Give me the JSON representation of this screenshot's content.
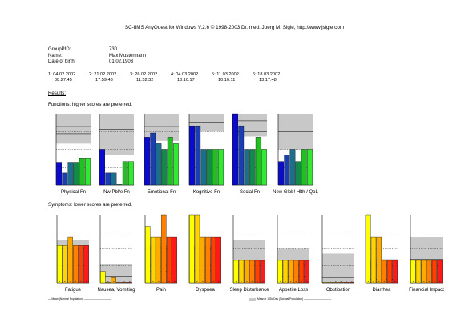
{
  "header": {
    "title": "SC-IIMS AnyQuest for Windows V.2.6 © 1998-2003 Dr. med. Joerg M. Sigle, http://www.jsigle.com"
  },
  "patient": {
    "group_pid_label": "GroupPID:",
    "group_pid_value": "730",
    "name_label": "Name:",
    "name_value": "Max Mustermann",
    "dob_label": "Date of birth:",
    "dob_value": "01.02.1903"
  },
  "sessions": [
    {
      "date": "1: 04.02.2002",
      "time": "08:27:45"
    },
    {
      "date": "2: 21.02.2002",
      "time": "17:59:43"
    },
    {
      "date": "3: 26.02.2002",
      "time": "11:52:32"
    },
    {
      "date": "4: 04.03.2002",
      "time": "10:10:17"
    },
    {
      "date": "5: 11.03.2002",
      "time": "10:10:11"
    },
    {
      "date": "6: 18.03.2002",
      "time": "13:17:48"
    }
  ],
  "sections": {
    "results": "Results:",
    "functions": "Functions: higher scores are preferred.",
    "symptoms": "Symptoms: lower scores are preferred."
  },
  "legend": {
    "left": "— Mean (Normal Population) ——————————",
    "right": "Mean ± 1 StdDev (Normal Population) ——————————"
  },
  "colors": {
    "reference_band": "#c8c8c8",
    "function_bar_palette": [
      "#0a0ad0",
      "#1a3fb5",
      "#1c6f8a",
      "#138a4a",
      "#22bf22",
      "#33e833"
    ],
    "symptom_bar_palette": [
      "#ffff00",
      "#ffd400",
      "#ffaa00",
      "#ff8000",
      "#ff4000",
      "#ff1a1a"
    ]
  },
  "chart_data": [
    {
      "type": "bar",
      "title": "Physical Fn",
      "group": "functions",
      "ylim": [
        0,
        100
      ],
      "categories": [
        "1",
        "2",
        "3",
        "4",
        "5",
        "6"
      ],
      "values": [
        32,
        17,
        32,
        32,
        38,
        38
      ],
      "bar_labels": false,
      "ref_band": [
        58,
        100
      ],
      "ref_mean": 82,
      "ref_line2": 72
    },
    {
      "type": "bar",
      "title": "Nw Pbl/e Fn",
      "group": "functions",
      "ylim": [
        0,
        100
      ],
      "categories": [
        "1",
        "2",
        "3",
        "4",
        "5",
        "6"
      ],
      "values": [
        50,
        17,
        17,
        0,
        33,
        33
      ],
      "bar_labels": false,
      "ref_band": [
        42,
        100
      ],
      "ref_mean": 78,
      "ref_line2": 70
    },
    {
      "type": "bar",
      "title": "Emotional Fn",
      "group": "functions",
      "ylim": [
        0,
        100
      ],
      "categories": [
        "1",
        "2",
        "3",
        "4",
        "5",
        "6"
      ],
      "values": [
        67,
        73,
        58,
        50,
        67,
        58
      ],
      "bar_labels": false,
      "ref_band": [
        62,
        100
      ],
      "ref_mean": 82,
      "ref_line2": 82
    },
    {
      "type": "bar",
      "title": "Kognitive Fn",
      "group": "functions",
      "ylim": [
        0,
        100
      ],
      "categories": [
        "1",
        "2",
        "3",
        "4",
        "5",
        "6"
      ],
      "values": [
        83,
        83,
        50,
        50,
        50,
        50
      ],
      "bar_labels": false,
      "ref_band": [
        75,
        100
      ],
      "ref_mean": 88,
      "ref_line2": 88
    },
    {
      "type": "bar",
      "title": "Social Fn",
      "group": "functions",
      "ylim": [
        0,
        100
      ],
      "categories": [
        "1",
        "2",
        "3",
        "4",
        "5",
        "6"
      ],
      "values": [
        100,
        83,
        50,
        50,
        67,
        50
      ],
      "bar_labels": false,
      "ref_band": [
        68,
        100
      ],
      "ref_mean": 90,
      "ref_line2": 75
    },
    {
      "type": "bar",
      "title": "New Glob! Hlth / QoL",
      "group": "functions",
      "ylim": [
        0,
        100
      ],
      "categories": [
        "1",
        "2",
        "3",
        "4",
        "5",
        "6"
      ],
      "values": [
        33,
        42,
        50,
        33,
        50,
        50
      ],
      "bar_labels": false,
      "ref_band": [
        50,
        100
      ],
      "ref_mean": 75,
      "ref_line2": 75
    },
    {
      "type": "bar",
      "title": "Fatigue",
      "group": "symptoms",
      "ylim": [
        0,
        100
      ],
      "categories": [
        "1",
        "2",
        "3",
        "4",
        "5",
        "6"
      ],
      "values": [
        55,
        55,
        67,
        55,
        55,
        55
      ],
      "bar_labels": true,
      "ref_band": [
        0,
        63
      ],
      "ref_mean": 22,
      "ref_line2": 22
    },
    {
      "type": "bar",
      "title": "Nausea, Vomiting",
      "group": "symptoms",
      "ylim": [
        0,
        100
      ],
      "categories": [
        "1",
        "2",
        "3",
        "4",
        "5",
        "6"
      ],
      "values": [
        17,
        0,
        8,
        0,
        0,
        0
      ],
      "bar_labels": true,
      "ref_band": [
        0,
        28
      ],
      "ref_mean": 10,
      "ref_line2": 10
    },
    {
      "type": "bar",
      "title": "Pain",
      "group": "symptoms",
      "ylim": [
        0,
        100
      ],
      "categories": [
        "1",
        "2",
        "3",
        "4",
        "5",
        "6"
      ],
      "values": [
        83,
        67,
        67,
        100,
        67,
        67
      ],
      "bar_labels": true,
      "ref_band": [
        0,
        55
      ],
      "ref_mean": 17,
      "ref_line2": 17
    },
    {
      "type": "bar",
      "title": "Dyspnea",
      "group": "symptoms",
      "ylim": [
        0,
        100
      ],
      "categories": [
        "1",
        "2",
        "3",
        "4",
        "5",
        "6"
      ],
      "values": [
        100,
        100,
        67,
        67,
        67,
        67
      ],
      "bar_labels": true,
      "ref_band": [
        0,
        55
      ],
      "ref_mean": 18,
      "ref_line2": 18
    },
    {
      "type": "bar",
      "title": "Sleep Disturbance",
      "group": "symptoms",
      "ylim": [
        0,
        100
      ],
      "categories": [
        "1",
        "2",
        "3",
        "4",
        "5",
        "6"
      ],
      "values": [
        33,
        33,
        33,
        33,
        33,
        33
      ],
      "bar_labels": true,
      "ref_band": [
        0,
        63
      ],
      "ref_mean": 22,
      "ref_line2": 22
    },
    {
      "type": "bar",
      "title": "Appetite Loss",
      "group": "symptoms",
      "ylim": [
        0,
        100
      ],
      "categories": [
        "1",
        "2",
        "3",
        "4",
        "5",
        "6"
      ],
      "values": [
        33,
        33,
        33,
        33,
        33,
        33
      ],
      "bar_labels": true,
      "ref_band": [
        0,
        50
      ],
      "ref_mean": 10,
      "ref_line2": 10
    },
    {
      "type": "bar",
      "title": "Obstipation",
      "group": "symptoms",
      "ylim": [
        0,
        100
      ],
      "categories": [
        "1",
        "2",
        "3",
        "4",
        "5",
        "6"
      ],
      "values": [
        0,
        0,
        0,
        0,
        0,
        0
      ],
      "bar_labels": true,
      "ref_band": [
        0,
        43
      ],
      "ref_mean": 8,
      "ref_line2": 8
    },
    {
      "type": "bar",
      "title": "Diarrhea",
      "group": "symptoms",
      "ylim": [
        0,
        100
      ],
      "categories": [
        "1",
        "2",
        "3",
        "4",
        "5",
        "6"
      ],
      "values": [
        100,
        67,
        67,
        33,
        33,
        33
      ],
      "bar_labels": true,
      "ref_band": [
        0,
        35
      ],
      "ref_mean": 5,
      "ref_line2": 5
    },
    {
      "type": "bar",
      "title": "Financial Impact",
      "group": "symptoms",
      "ylim": [
        0,
        100
      ],
      "categories": [
        "1",
        "2",
        "3",
        "4",
        "5",
        "6"
      ],
      "values": [
        33,
        33,
        33,
        33,
        33,
        33
      ],
      "bar_labels": true,
      "ref_band": [
        0,
        67
      ],
      "ref_mean": 35,
      "ref_line2": 35
    }
  ]
}
